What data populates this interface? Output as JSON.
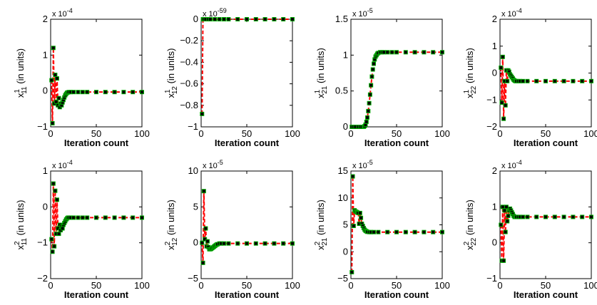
{
  "figure": {
    "xlabel": "Iteration count",
    "ylabel_unit": "(in units)",
    "line_color": "#ff0000",
    "marker_fill": "#000000",
    "marker_edge": "#00aa00"
  },
  "chart_data": [
    {
      "type": "line",
      "ylabel": {
        "var": "x",
        "sup": "1",
        "sub": "11"
      },
      "exponent": "-4",
      "xlim": [
        0,
        100
      ],
      "ylim": [
        -1,
        2
      ],
      "xticks": [
        "0",
        "50",
        "100"
      ],
      "yticks": [
        {
          "v": -1,
          "t": "−1"
        },
        {
          "v": 0,
          "t": "0"
        },
        {
          "v": 1,
          "t": "1"
        },
        {
          "v": 2,
          "t": "2"
        }
      ],
      "x": [
        1,
        2,
        3,
        4,
        5,
        6,
        7,
        8,
        9,
        10,
        11,
        12,
        13,
        14,
        15,
        16,
        17,
        18,
        19,
        20,
        22,
        25,
        30,
        35,
        40,
        50,
        60,
        70,
        80,
        90,
        100
      ],
      "y": [
        0.3,
        -0.9,
        1.2,
        -0.35,
        0.45,
        -0.3,
        0.35,
        -0.4,
        -0.2,
        -0.45,
        -0.35,
        -0.4,
        -0.32,
        -0.25,
        -0.18,
        -0.12,
        -0.08,
        -0.05,
        -0.04,
        -0.03,
        -0.03,
        -0.03,
        -0.03,
        -0.03,
        -0.03,
        -0.03,
        -0.03,
        -0.03,
        -0.03,
        -0.03,
        -0.03
      ]
    },
    {
      "type": "line",
      "ylabel": {
        "var": "x",
        "sup": "1",
        "sub": "12"
      },
      "exponent": "-59",
      "xlim": [
        0,
        100
      ],
      "ylim": [
        -1,
        0
      ],
      "xticks": [
        "0",
        "50",
        "100"
      ],
      "yticks": [
        {
          "v": -1,
          "t": "−1"
        },
        {
          "v": -0.8,
          "t": "−0.8"
        },
        {
          "v": -0.6,
          "t": "−0.6"
        },
        {
          "v": -0.4,
          "t": "−0.4"
        },
        {
          "v": -0.2,
          "t": "−0.2"
        },
        {
          "v": 0,
          "t": "0"
        }
      ],
      "x": [
        1,
        2,
        3,
        5,
        8,
        10,
        15,
        20,
        25,
        30,
        40,
        50,
        60,
        70,
        80,
        90,
        100
      ],
      "y": [
        -0.88,
        0,
        0,
        0,
        0,
        0,
        0,
        0,
        0,
        0,
        0,
        0,
        0,
        0,
        0,
        0,
        0
      ]
    },
    {
      "type": "line",
      "ylabel": {
        "var": "x",
        "sup": "1",
        "sub": "21"
      },
      "exponent": "-5",
      "xlim": [
        0,
        100
      ],
      "ylim": [
        0,
        1.5
      ],
      "xticks": [
        "0",
        "50",
        "100"
      ],
      "yticks": [
        {
          "v": 0,
          "t": "0"
        },
        {
          "v": 0.5,
          "t": "0.5"
        },
        {
          "v": 1,
          "t": "1"
        },
        {
          "v": 1.5,
          "t": "1.5"
        }
      ],
      "x": [
        1,
        3,
        5,
        8,
        10,
        12,
        14,
        15,
        16,
        17,
        18,
        19,
        20,
        21,
        22,
        23,
        24,
        25,
        26,
        27,
        28,
        29,
        30,
        32,
        34,
        36,
        40,
        45,
        50,
        60,
        70,
        80,
        90,
        100
      ],
      "y": [
        0,
        0,
        0,
        0,
        0,
        0,
        0,
        0.01,
        0.03,
        0.07,
        0.13,
        0.22,
        0.33,
        0.45,
        0.58,
        0.7,
        0.8,
        0.88,
        0.94,
        0.98,
        1.0,
        1.02,
        1.03,
        1.04,
        1.04,
        1.04,
        1.04,
        1.04,
        1.04,
        1.04,
        1.04,
        1.04,
        1.04,
        1.04
      ]
    },
    {
      "type": "line",
      "ylabel": {
        "var": "x",
        "sup": "1",
        "sub": "22"
      },
      "exponent": "-4",
      "xlim": [
        0,
        100
      ],
      "ylim": [
        -2,
        2
      ],
      "xticks": [
        "0",
        "50",
        "100"
      ],
      "yticks": [
        {
          "v": -2,
          "t": "−2"
        },
        {
          "v": -1,
          "t": "−1"
        },
        {
          "v": 0,
          "t": "0"
        },
        {
          "v": 1,
          "t": "1"
        },
        {
          "v": 2,
          "t": "2"
        }
      ],
      "x": [
        1,
        2,
        3,
        4,
        5,
        6,
        7,
        8,
        9,
        10,
        11,
        12,
        13,
        14,
        15,
        16,
        17,
        18,
        20,
        22,
        25,
        30,
        40,
        50,
        60,
        70,
        80,
        90,
        100
      ],
      "y": [
        0.2,
        -1.1,
        0.6,
        -1.7,
        -0.3,
        -1.2,
        0.1,
        -0.3,
        0.1,
        0.05,
        -0.05,
        -0.1,
        -0.15,
        -0.2,
        -0.25,
        -0.28,
        -0.3,
        -0.3,
        -0.3,
        -0.3,
        -0.3,
        -0.3,
        -0.3,
        -0.3,
        -0.3,
        -0.3,
        -0.3,
        -0.3,
        -0.3
      ]
    },
    {
      "type": "line",
      "ylabel": {
        "var": "x",
        "sup": "2",
        "sub": "11"
      },
      "exponent": "-4",
      "xlim": [
        0,
        100
      ],
      "ylim": [
        -2,
        1
      ],
      "xticks": [
        "0",
        "50",
        "100"
      ],
      "yticks": [
        {
          "v": -2,
          "t": "−2"
        },
        {
          "v": -1,
          "t": "−1"
        },
        {
          "v": 0,
          "t": "0"
        },
        {
          "v": 1,
          "t": "1"
        }
      ],
      "x": [
        1,
        2,
        3,
        4,
        5,
        6,
        7,
        8,
        9,
        10,
        11,
        12,
        13,
        14,
        15,
        16,
        17,
        18,
        19,
        20,
        22,
        25,
        30,
        35,
        40,
        50,
        60,
        70,
        80,
        90,
        100
      ],
      "y": [
        -0.9,
        -1.25,
        0.65,
        -1.1,
        0.45,
        -0.75,
        0.2,
        -0.6,
        -0.75,
        -0.5,
        -0.65,
        -0.55,
        -0.6,
        -0.5,
        -0.45,
        -0.4,
        -0.35,
        -0.32,
        -0.3,
        -0.3,
        -0.3,
        -0.3,
        -0.3,
        -0.3,
        -0.3,
        -0.3,
        -0.3,
        -0.3,
        -0.3,
        -0.3,
        -0.3
      ]
    },
    {
      "type": "line",
      "ylabel": {
        "var": "x",
        "sup": "2",
        "sub": "12"
      },
      "exponent": "-5",
      "xlim": [
        0,
        100
      ],
      "ylim": [
        -5,
        10
      ],
      "xticks": [
        "0",
        "50",
        "100"
      ],
      "yticks": [
        {
          "v": -5,
          "t": "−5"
        },
        {
          "v": 0,
          "t": "0"
        },
        {
          "v": 5,
          "t": "5"
        },
        {
          "v": 10,
          "t": "10"
        }
      ],
      "x": [
        1,
        2,
        3,
        4,
        5,
        6,
        7,
        8,
        9,
        10,
        11,
        12,
        13,
        14,
        15,
        16,
        17,
        18,
        20,
        22,
        25,
        30,
        40,
        50,
        60,
        70,
        80,
        90,
        100
      ],
      "y": [
        0,
        -2.8,
        7.2,
        0.5,
        2,
        -0.5,
        0.2,
        -0.6,
        -0.9,
        -0.9,
        -0.85,
        -0.75,
        -0.65,
        -0.55,
        -0.45,
        -0.35,
        -0.25,
        -0.2,
        -0.1,
        -0.1,
        -0.1,
        -0.1,
        -0.1,
        -0.1,
        -0.1,
        -0.1,
        -0.1,
        -0.1,
        -0.1
      ]
    },
    {
      "type": "line",
      "ylabel": {
        "var": "x",
        "sup": "2",
        "sub": "21"
      },
      "exponent": "-5",
      "xlim": [
        0,
        100
      ],
      "ylim": [
        -5,
        15
      ],
      "xticks": [
        "0",
        "50",
        "100"
      ],
      "yticks": [
        {
          "v": -5,
          "t": "−5"
        },
        {
          "v": 0,
          "t": "0"
        },
        {
          "v": 5,
          "t": "5"
        },
        {
          "v": 10,
          "t": "10"
        },
        {
          "v": 15,
          "t": "15"
        }
      ],
      "x": [
        1,
        2,
        3,
        4,
        5,
        6,
        7,
        8,
        9,
        10,
        11,
        12,
        13,
        14,
        15,
        16,
        17,
        18,
        20,
        22,
        25,
        30,
        40,
        50,
        60,
        70,
        80,
        90,
        100
      ],
      "y": [
        -3.8,
        14,
        4.8,
        7.7,
        7.5,
        7.4,
        7.3,
        7.2,
        5.2,
        7.2,
        6.3,
        5.2,
        4.8,
        4.4,
        4.1,
        3.9,
        3.8,
        3.7,
        3.65,
        3.65,
        3.65,
        3.65,
        3.65,
        3.65,
        3.65,
        3.65,
        3.65,
        3.65,
        3.65
      ]
    },
    {
      "type": "line",
      "ylabel": {
        "var": "x",
        "sup": "2",
        "sub": "22"
      },
      "exponent": "-4",
      "xlim": [
        0,
        100
      ],
      "ylim": [
        -1,
        2
      ],
      "xticks": [
        "0",
        "50",
        "100"
      ],
      "yticks": [
        {
          "v": -1,
          "t": "−1"
        },
        {
          "v": 0,
          "t": "0"
        },
        {
          "v": 1,
          "t": "1"
        },
        {
          "v": 2,
          "t": "2"
        }
      ],
      "x": [
        1,
        2,
        3,
        4,
        5,
        6,
        7,
        8,
        9,
        10,
        11,
        12,
        13,
        14,
        15,
        16,
        17,
        18,
        20,
        22,
        25,
        30,
        40,
        50,
        60,
        70,
        80,
        90,
        100
      ],
      "y": [
        0.5,
        -0.5,
        1.0,
        -0.5,
        0.9,
        0.3,
        1.0,
        0.6,
        0.75,
        0.9,
        0.95,
        0.9,
        0.85,
        0.8,
        0.75,
        0.72,
        0.72,
        0.72,
        0.72,
        0.72,
        0.72,
        0.72,
        0.72,
        0.72,
        0.72,
        0.72,
        0.72,
        0.72,
        0.72
      ]
    }
  ]
}
